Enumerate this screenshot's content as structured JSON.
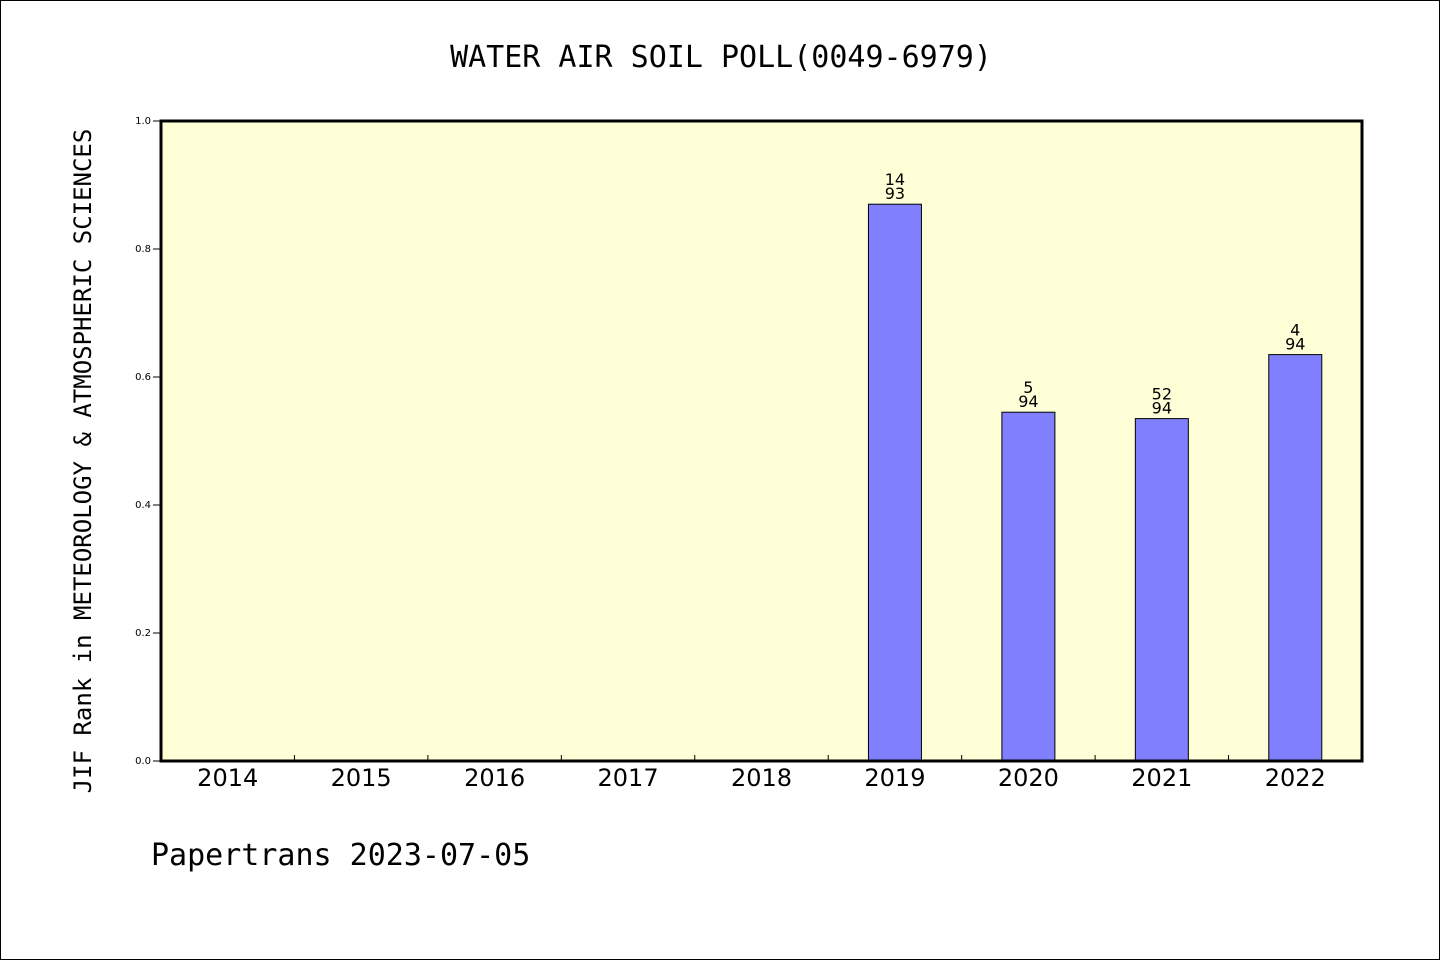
{
  "chart_data": {
    "type": "bar",
    "title": "WATER AIR SOIL POLL(0049-6979)",
    "xlabel": "",
    "ylabel": "JIF Rank in METEOROLOGY & ATMOSPHERIC SCIENCES",
    "ylim": [
      0,
      1.0
    ],
    "yticks": [
      "0.0",
      "0.2",
      "0.4",
      "0.6",
      "0.8",
      "1.0"
    ],
    "categories": [
      "2014",
      "2015",
      "2016",
      "2017",
      "2018",
      "2019",
      "2020",
      "2021",
      "2022"
    ],
    "values": [
      null,
      null,
      null,
      null,
      null,
      0.87,
      0.545,
      0.535,
      0.635
    ],
    "labels": [
      null,
      null,
      null,
      null,
      null,
      [
        "14",
        "93"
      ],
      [
        "5",
        "94"
      ],
      [
        "52",
        "94"
      ],
      [
        "4",
        "94"
      ]
    ],
    "grid": false,
    "colors": {
      "plot_background": "#ffffd7",
      "bar_fill": "#8080ff",
      "bar_stroke": "#000000"
    }
  },
  "footer": "Papertrans 2023-07-05"
}
